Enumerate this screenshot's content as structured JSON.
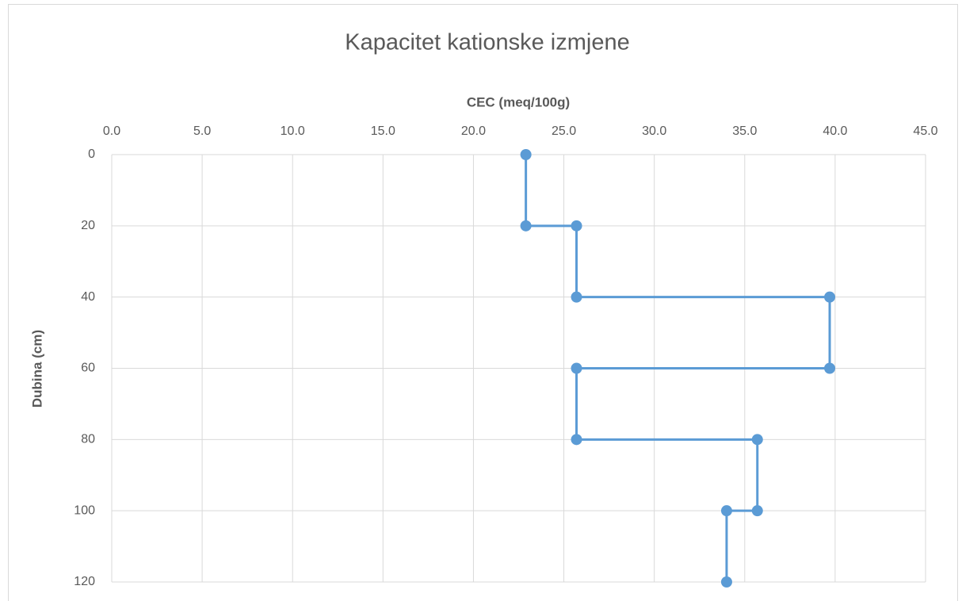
{
  "chart_data": {
    "type": "line",
    "title": "Kapacitet kationske izmjene",
    "xlabel": "CEC (meq/100g)",
    "ylabel": "Dubina (cm)",
    "xlim": [
      0,
      45
    ],
    "xticks": [
      {
        "value": 0,
        "label": "0.0"
      },
      {
        "value": 5,
        "label": "5.0"
      },
      {
        "value": 10,
        "label": "10.0"
      },
      {
        "value": 15,
        "label": "15.0"
      },
      {
        "value": 20,
        "label": "20.0"
      },
      {
        "value": 25,
        "label": "25.0"
      },
      {
        "value": 30,
        "label": "30.0"
      },
      {
        "value": 35,
        "label": "35.0"
      },
      {
        "value": 40,
        "label": "40.0"
      },
      {
        "value": 45,
        "label": "45.0"
      }
    ],
    "ylim": [
      0,
      120
    ],
    "yticks": [
      0,
      20,
      40,
      60,
      80,
      100,
      120
    ],
    "y_inverted": true,
    "grid": true,
    "color": "#5b9bd5",
    "values": [
      22.9,
      22.9,
      25.7,
      25.7,
      39.7,
      39.7,
      25.7,
      25.7,
      35.7,
      35.7,
      34.0,
      34.0
    ],
    "y": [
      0,
      20,
      20,
      40,
      40,
      60,
      60,
      80,
      80,
      100,
      100,
      120
    ]
  }
}
